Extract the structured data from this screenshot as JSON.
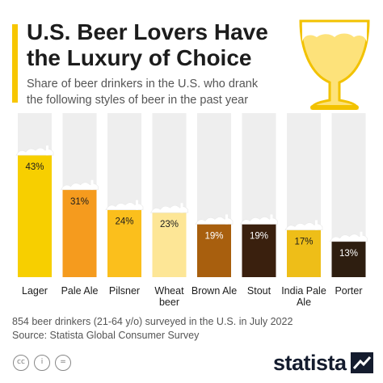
{
  "title_lines": [
    "U.S. Beer Lovers Have",
    "the Luxury of Choice"
  ],
  "subtitle_lines": [
    "Share of beer drinkers in the U.S. who drank",
    "the following styles of beer in the past year"
  ],
  "footnote_lines": [
    "854 beer drinkers (21-64 y/o) surveyed in the U.S. in July 2022",
    "Source: Statista Global Consumer Survey"
  ],
  "brand": "statista",
  "license_icons": [
    "cc-icon",
    "attribution-icon",
    "no-derivatives-icon"
  ],
  "colors": {
    "accent": "#f7c600",
    "track": "#eeeeee",
    "foam": "#ffffff",
    "text": "#1c1c1c",
    "brand": "#141c2e"
  },
  "chart_data": {
    "type": "bar",
    "title": "U.S. Beer Lovers Have the Luxury of Choice",
    "subtitle": "Share of beer drinkers in the U.S. who drank the following styles of beer in the past year",
    "categories": [
      [
        "Lager"
      ],
      [
        "Pale Ale"
      ],
      [
        "Pilsner"
      ],
      [
        "Wheat",
        "beer"
      ],
      [
        "Brown Ale"
      ],
      [
        "Stout"
      ],
      [
        "India Pale",
        "Ale"
      ],
      [
        "Porter"
      ]
    ],
    "values": [
      43,
      31,
      24,
      23,
      19,
      19,
      17,
      13
    ],
    "value_labels": [
      "43%",
      "31%",
      "24%",
      "23%",
      "19%",
      "19%",
      "17%",
      "13%"
    ],
    "bar_colors": [
      "#f7cf00",
      "#f59b1e",
      "#fbbf1c",
      "#fde696",
      "#a85f0e",
      "#3a200e",
      "#eebe18",
      "#2e1e10"
    ],
    "label_colors": [
      "#1c1c1c",
      "#1c1c1c",
      "#1c1c1c",
      "#1c1c1c",
      "#ffffff",
      "#ffffff",
      "#1c1c1c",
      "#ffffff"
    ],
    "unit": "%",
    "ylim": [
      0,
      45
    ],
    "grid": false,
    "legend": "none"
  }
}
